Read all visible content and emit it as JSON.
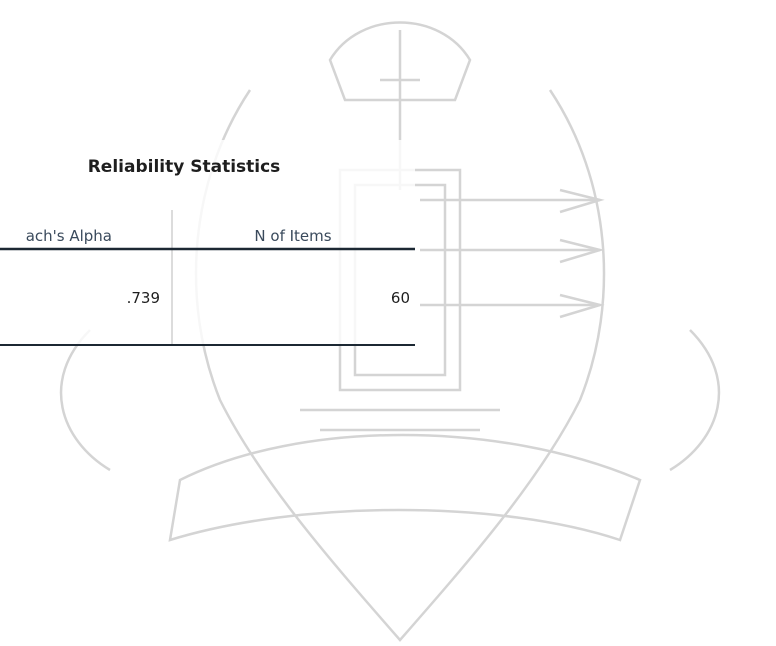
{
  "table": {
    "title": "Reliability Statistics",
    "headers": [
      "ach's Alpha",
      "N of Items"
    ],
    "rows": [
      [
        ".739",
        "60"
      ]
    ]
  }
}
